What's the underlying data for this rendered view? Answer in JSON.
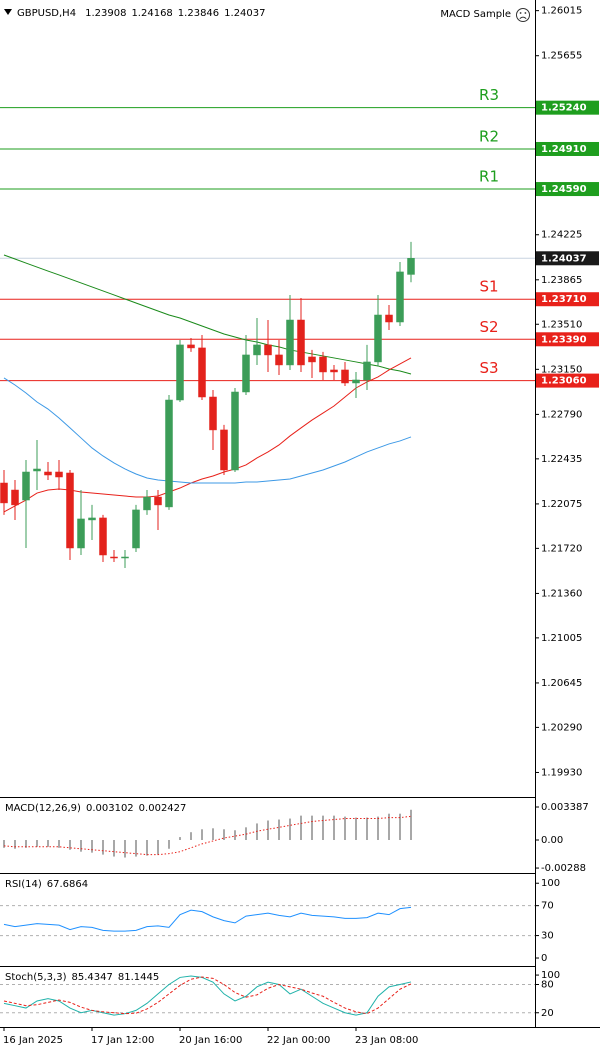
{
  "chart_data": [
    {
      "type": "candlestick",
      "symbol": "GBPUSD,H4",
      "expert": "MACD Sample",
      "categories": [
        "16 Jan 2025",
        null,
        null,
        null,
        null,
        null,
        null,
        null,
        "17 Jan 12:00",
        null,
        null,
        null,
        null,
        null,
        null,
        null,
        "20 Jan 16:00",
        null,
        null,
        null,
        null,
        null,
        null,
        null,
        "22 Jan 00:00",
        null,
        null,
        null,
        null,
        null,
        null,
        null,
        "23 Jan 08:00",
        null,
        null,
        null,
        null,
        null
      ],
      "open": [
        1.22242,
        1.22186,
        1.22106,
        1.22338,
        1.2233,
        1.2233,
        1.22322,
        1.21723,
        1.21947,
        1.21963,
        1.21651,
        1.21643,
        1.21723,
        1.22027,
        1.2213,
        1.22051,
        1.22905,
        1.23345,
        1.23321,
        1.22929,
        1.22666,
        1.22346,
        1.22969,
        1.23265,
        1.23345,
        1.23265,
        1.23185,
        1.23544,
        1.23249,
        1.23249,
        1.23145,
        1.23145,
        1.23041,
        1.23065,
        1.23209,
        1.23584,
        1.23528,
        1.23908
      ],
      "high": [
        1.22346,
        1.22266,
        1.22426,
        1.22586,
        1.2241,
        1.22426,
        1.22346,
        1.22186,
        1.22067,
        1.21987,
        1.21707,
        1.21707,
        1.22067,
        1.22186,
        1.22186,
        1.22945,
        1.23384,
        1.234,
        1.23424,
        1.22985,
        1.22706,
        1.23001,
        1.23424,
        1.2356,
        1.23544,
        1.23384,
        1.23744,
        1.2372,
        1.23305,
        1.23289,
        1.23185,
        1.23209,
        1.23129,
        1.23345,
        1.23744,
        1.23664,
        1.24007,
        1.24168
      ],
      "low": [
        1.21987,
        1.21947,
        1.21723,
        1.22186,
        1.22266,
        1.22186,
        1.21627,
        1.21667,
        1.21787,
        1.21611,
        1.21611,
        1.21563,
        1.21691,
        1.21987,
        1.21867,
        1.22027,
        1.22889,
        1.23289,
        1.22905,
        1.22506,
        1.22306,
        1.2233,
        1.22945,
        1.23185,
        1.23129,
        1.23105,
        1.23145,
        1.23129,
        1.23081,
        1.23065,
        1.23065,
        1.23017,
        1.22921,
        1.22985,
        1.23177,
        1.23464,
        1.23496,
        1.23846
      ],
      "close": [
        1.22083,
        1.22067,
        1.2233,
        1.22354,
        1.22306,
        1.2229,
        1.21723,
        1.21955,
        1.21963,
        1.21667,
        1.21643,
        1.21651,
        1.22027,
        1.2213,
        1.22067,
        1.22905,
        1.23345,
        1.23321,
        1.22929,
        1.22666,
        1.22346,
        1.22969,
        1.23265,
        1.23345,
        1.23265,
        1.23185,
        1.23544,
        1.23185,
        1.23209,
        1.23129,
        1.23129,
        1.23041,
        1.23065,
        1.23209,
        1.23584,
        1.23528,
        1.23928,
        1.24037
      ],
      "up_color": "#3c9d58",
      "down_color": "#e3221c",
      "series": [
        {
          "color": "#1a8a1a",
          "values": [
            1.24063,
            1.24031,
            1.23999,
            1.23967,
            1.23935,
            1.23904,
            1.23872,
            1.2384,
            1.23808,
            1.23776,
            1.23744,
            1.23712,
            1.2368,
            1.23648,
            1.23616,
            1.23584,
            1.2356,
            1.23528,
            1.23496,
            1.23464,
            1.23432,
            1.23408,
            1.23384,
            1.23368,
            1.23345,
            1.23329,
            1.23305,
            1.23289,
            1.23273,
            1.23257,
            1.23241,
            1.23225,
            1.23209,
            1.23193,
            1.23177,
            1.23153,
            1.23137,
            1.23113
          ]
        },
        {
          "color": "#e8211a",
          "values": [
            1.22011,
            1.22059,
            1.22106,
            1.22162,
            1.22186,
            1.22194,
            1.22186,
            1.2217,
            1.22162,
            1.22154,
            1.22146,
            1.22138,
            1.2213,
            1.2213,
            1.22138,
            1.2217,
            1.22202,
            1.22242,
            1.22274,
            1.22298,
            1.2233,
            1.22354,
            1.22386,
            1.22442,
            1.2249,
            1.22546,
            1.22618,
            1.22682,
            1.22745,
            1.22801,
            1.22857,
            1.22929,
            1.23001,
            1.23049,
            1.23089,
            1.23145,
            1.23193,
            1.23241
          ]
        },
        {
          "color": "#3d99e6",
          "values": [
            1.23081,
            1.23025,
            1.22961,
            1.22889,
            1.22833,
            1.22761,
            1.22682,
            1.22602,
            1.22522,
            1.22458,
            1.22402,
            1.22354,
            1.22314,
            1.22282,
            1.22266,
            1.22258,
            1.2225,
            1.22242,
            1.22242,
            1.22242,
            1.22242,
            1.22242,
            1.2225,
            1.2225,
            1.22258,
            1.22266,
            1.22274,
            1.22298,
            1.22322,
            1.22346,
            1.22378,
            1.2241,
            1.2245,
            1.2249,
            1.22522,
            1.22554,
            1.22578,
            1.2261
          ]
        }
      ],
      "levels": [
        {
          "name": "R3",
          "value": 1.2524,
          "value_label": "1.25240",
          "color": "#1e9e1e"
        },
        {
          "name": "R2",
          "value": 1.2491,
          "value_label": "1.24910",
          "color": "#1e9e1e"
        },
        {
          "name": "R1",
          "value": 1.2459,
          "value_label": "1.24590",
          "color": "#1e9e1e"
        },
        {
          "name": "S1",
          "value": 1.2371,
          "value_label": "1.23710",
          "color": "#e8211a"
        },
        {
          "name": "S2",
          "value": 1.2339,
          "value_label": "1.23390",
          "color": "#e8211a"
        },
        {
          "name": "S3",
          "value": 1.2306,
          "value_label": "1.23060",
          "color": "#e8211a"
        }
      ],
      "last_price_color": "#1a1a1a",
      "ylim": [
        1.1975,
        1.261
      ],
      "yticks": [
        1.26015,
        1.25655,
        1.24225,
        1.23865,
        {
          "value": 1.2351,
          "label": "1.23510"
        },
        {
          "value": 1.2315,
          "label": "1.23150"
        },
        {
          "value": 1.2279,
          "label": "1.22790"
        },
        1.22435,
        1.22075,
        {
          "value": 1.2172,
          "label": "1.21720"
        },
        {
          "value": 1.2136,
          "label": "1.21360"
        },
        1.21005,
        1.20645,
        {
          "value": 1.2029,
          "label": "1.20290"
        },
        {
          "value": 1.1993,
          "label": "1.19930"
        }
      ]
    },
    {
      "type": "macd",
      "title": "MACD(12,26,9)",
      "series": [
        {
          "style": "histogram",
          "color": "#a8a8a8",
          "values": [
            -0.0008,
            -0.0009,
            -0.0008,
            -0.0007,
            -0.0007,
            -0.0008,
            -0.001,
            -0.0012,
            -0.0013,
            -0.0015,
            -0.0017,
            -0.0018,
            -0.0017,
            -0.0016,
            -0.0015,
            -0.0009,
            0.0003,
            0.0008,
            0.0011,
            0.0012,
            0.0011,
            0.001,
            0.0013,
            0.0017,
            0.002,
            0.0021,
            0.0022,
            0.0025,
            0.0025,
            0.0025,
            0.0025,
            0.0024,
            0.0023,
            0.0023,
            0.0024,
            0.0027,
            0.0027,
            0.003102
          ]
        },
        {
          "style": "dotted",
          "color": "#e8211a",
          "values": [
            -0.0006,
            -0.0007,
            -0.0007,
            -0.0007,
            -0.0007,
            -0.0007,
            -0.0008,
            -0.0009,
            -0.001,
            -0.0011,
            -0.0012,
            -0.0013,
            -0.0014,
            -0.0015,
            -0.0015,
            -0.0014,
            -0.0012,
            -0.0008,
            -0.0004,
            -0.0001,
            0.0002,
            0.0004,
            0.0006,
            0.0009,
            0.0011,
            0.0013,
            0.0015,
            0.0017,
            0.0019,
            0.002,
            0.0021,
            0.0022,
            0.0022,
            0.0022,
            0.0022,
            0.0023,
            0.0023,
            0.002427
          ]
        }
      ],
      "ylim": [
        -0.00308,
        0.00431
      ],
      "yticks": [
        0.003387,
        {
          "value": 0,
          "label": "0.00"
        },
        -0.00288
      ]
    },
    {
      "type": "line",
      "title": "RSI(14)",
      "series": [
        {
          "style": "solid",
          "color": "#1e90ff",
          "values": [
            45,
            42,
            44,
            46,
            45,
            44,
            38,
            42,
            41,
            37,
            36,
            36,
            37,
            42,
            43,
            41,
            58,
            64,
            62,
            55,
            50,
            47,
            56,
            58,
            60,
            57,
            55,
            60,
            57,
            56,
            55,
            53,
            53,
            54,
            60,
            58,
            66,
            67.6864
          ]
        }
      ],
      "levels": [
        70,
        30
      ],
      "ylim": [
        -8,
        111
      ],
      "yticks": [
        100,
        70,
        30,
        0
      ]
    },
    {
      "type": "line",
      "title": "Stoch(5,3,3)",
      "series": [
        {
          "style": "solid",
          "color": "#20b2aa",
          "values": [
            40,
            35,
            30,
            45,
            50,
            45,
            30,
            20,
            25,
            20,
            15,
            18,
            25,
            40,
            60,
            80,
            95,
            98,
            95,
            85,
            60,
            45,
            55,
            75,
            85,
            80,
            60,
            70,
            55,
            40,
            30,
            20,
            15,
            20,
            55,
            75,
            80,
            85.4347
          ]
        },
        {
          "style": "dashed",
          "color": "#e8211a",
          "values": [
            45,
            40,
            35,
            37,
            42,
            47,
            42,
            32,
            25,
            22,
            20,
            18,
            19,
            28,
            42,
            60,
            78,
            91,
            96,
            93,
            80,
            63,
            53,
            58,
            72,
            80,
            75,
            70,
            62,
            55,
            42,
            30,
            22,
            18,
            30,
            50,
            70,
            81.1445
          ]
        }
      ],
      "levels": [
        80,
        20
      ],
      "ylim": [
        -6,
        115
      ],
      "yticks": [
        100,
        80,
        20
      ]
    }
  ]
}
